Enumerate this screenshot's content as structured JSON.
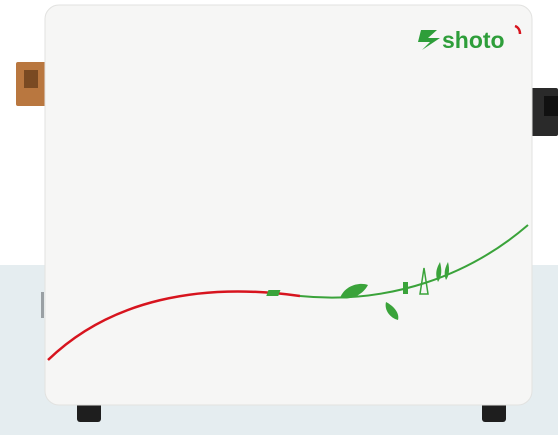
{
  "logo": {
    "text": "shoto"
  }
}
